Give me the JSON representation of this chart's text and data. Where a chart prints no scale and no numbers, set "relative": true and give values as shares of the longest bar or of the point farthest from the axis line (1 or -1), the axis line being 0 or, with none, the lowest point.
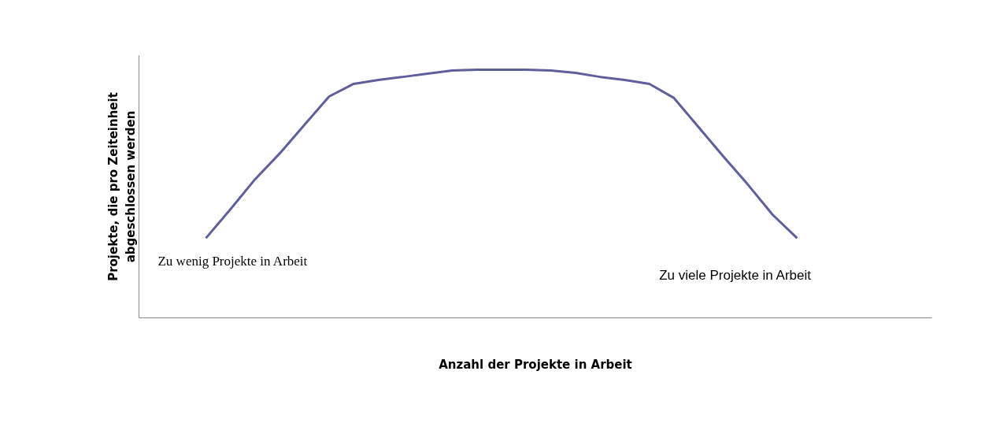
{
  "chart_data": {
    "type": "line",
    "relative": true,
    "xlabel": "Anzahl der Projekte in Arbeit",
    "ylabel": "Projekte, die pro Zeiteinheit\nabgeschlossen werden",
    "categories": [
      null,
      null,
      null,
      null,
      null,
      null,
      null,
      null,
      null,
      null,
      null,
      null,
      null,
      null,
      null,
      null,
      null,
      null,
      null,
      null,
      null,
      null,
      null,
      null,
      null
    ],
    "series": [
      {
        "color": "#5f5f9c",
        "values": [
          0.321,
          0.438,
          0.559,
          0.663,
          0.778,
          0.892,
          0.943,
          0.959,
          0.971,
          0.984,
          0.997,
          1,
          1,
          1,
          0.997,
          0.987,
          0.971,
          0.959,
          0.943,
          0.886,
          0.768,
          0.651,
          0.537,
          0.416,
          0.321
        ]
      }
    ],
    "annotations": [
      "Zu wenig Projekte in Arbeit",
      "Zu viele Projekte in Arbeit"
    ],
    "marker": "none",
    "line_style": "solid"
  }
}
